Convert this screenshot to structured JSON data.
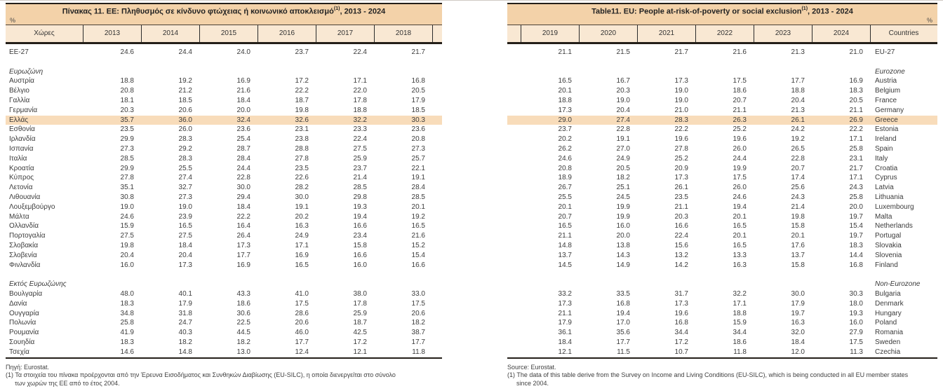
{
  "colors": {
    "band": "#f3d2a9",
    "header_bg": "#f9e8d3",
    "highlight": "#f8dcba",
    "border_dark": "#241f19",
    "text": "#3b3b3b"
  },
  "left_table": {
    "title_main": "Πίνακας 11. ΕΕ: Πληθυσμός σε κίνδυνο φτώχειας ή κοινωνικό αποκλεισμό",
    "title_sup": "(1)",
    "title_tail": ", 2013 - 2024",
    "percent_label": "%",
    "country_header": "Χώρες",
    "years": [
      "2013",
      "2014",
      "2015",
      "2016",
      "2017",
      "2018"
    ],
    "source": "Πηγή: Eurostat.",
    "footnotes": [
      {
        "text": "(1) Τα στοιχεία του πίνακα προέρχονται από την Έρευνα Εισοδήματος και Συνθηκών Διαβίωσης (EU-SILC), η οποία διενεργείται στο σύνολο",
        "cont": false
      },
      {
        "text": "των χωρών της ΕΕ από το έτος 2004.",
        "cont": true
      }
    ]
  },
  "right_table": {
    "title_main": "Table11. EU: People at-risk-of-poverty or social exclusion",
    "title_sup": "(1)",
    "title_tail": ", 2013 - 2024",
    "percent_label": "%",
    "country_header": "Countries",
    "years": [
      "2019",
      "2020",
      "2021",
      "2022",
      "2023",
      "2024"
    ],
    "source": "Source: Eurostat.",
    "footnotes": [
      {
        "text": "(1) The data of this table derive from the Survey on Income and Living Conditions (EU-SILC), which is being conducted in all EU member states",
        "cont": false
      },
      {
        "text": "since 2004.",
        "cont": true
      }
    ]
  },
  "rows": [
    {
      "type": "data",
      "el": "ΕΕ-27",
      "en": "EU-27",
      "l": [
        "24.6",
        "24.4",
        "24.0",
        "23.7",
        "22.4",
        "21.7"
      ],
      "r": [
        "21.1",
        "21.5",
        "21.7",
        "21.6",
        "21.3",
        "21.0"
      ]
    },
    {
      "type": "blank"
    },
    {
      "type": "section",
      "el": "Ευρωζώνη",
      "en": "Eurozone"
    },
    {
      "type": "data",
      "el": "Αυστρία",
      "en": "Austria",
      "l": [
        "18.8",
        "19.2",
        "16.9",
        "17.2",
        "17.1",
        "16.8"
      ],
      "r": [
        "16.5",
        "16.7",
        "17.3",
        "17.5",
        "17.7",
        "16.9"
      ]
    },
    {
      "type": "data",
      "el": "Βέλγιο",
      "en": "Belgium",
      "l": [
        "20.8",
        "21.2",
        "21.6",
        "22.2",
        "22.0",
        "20.5"
      ],
      "r": [
        "20.1",
        "20.3",
        "19.0",
        "18.6",
        "18.8",
        "18.3"
      ]
    },
    {
      "type": "data",
      "el": "Γαλλία",
      "en": "France",
      "l": [
        "18.1",
        "18.5",
        "18.4",
        "18.7",
        "17.8",
        "17.9"
      ],
      "r": [
        "18.8",
        "19.0",
        "19.0",
        "20.7",
        "20.4",
        "20.5"
      ]
    },
    {
      "type": "data",
      "el": "Γερμανία",
      "en": "Germany",
      "l": [
        "20.3",
        "20.6",
        "20.0",
        "19.8",
        "18.8",
        "18.5"
      ],
      "r": [
        "17.3",
        "20.4",
        "21.0",
        "21.1",
        "21.3",
        "21.1"
      ]
    },
    {
      "type": "data",
      "highlight": true,
      "el": "Ελλάς",
      "en": "Greece",
      "l": [
        "35.7",
        "36.0",
        "32.4",
        "32.6",
        "32.2",
        "30.3"
      ],
      "r": [
        "29.0",
        "27.4",
        "28.3",
        "26.3",
        "26.1",
        "26.9"
      ]
    },
    {
      "type": "data",
      "el": "Εσθονία",
      "en": "Estonia",
      "l": [
        "23.5",
        "26.0",
        "23.6",
        "23.1",
        "23.3",
        "23.6"
      ],
      "r": [
        "23.7",
        "22.8",
        "22.2",
        "25.2",
        "24.2",
        "22.2"
      ]
    },
    {
      "type": "data",
      "el": "Ιρλανδία",
      "en": "Ireland",
      "l": [
        "29.9",
        "28.3",
        "25.4",
        "23.8",
        "22.4",
        "20.8"
      ],
      "r": [
        "20.2",
        "19.1",
        "19.6",
        "19.6",
        "19.2",
        "17.1"
      ]
    },
    {
      "type": "data",
      "el": "Ισπανία",
      "en": "Spain",
      "l": [
        "27.3",
        "29.2",
        "28.7",
        "28.8",
        "27.5",
        "27.3"
      ],
      "r": [
        "26.2",
        "27.0",
        "27.8",
        "26.0",
        "26.5",
        "25.8"
      ]
    },
    {
      "type": "data",
      "el": "Ιταλία",
      "en": "Italy",
      "l": [
        "28.5",
        "28.3",
        "28.4",
        "27.8",
        "25.9",
        "25.7"
      ],
      "r": [
        "24.6",
        "24.9",
        "25.2",
        "24.4",
        "22.8",
        "23.1"
      ]
    },
    {
      "type": "data",
      "el": "Κροατία",
      "en": "Croatia",
      "l": [
        "29.9",
        "25.5",
        "24.4",
        "23.5",
        "23.7",
        "22.1"
      ],
      "r": [
        "20.8",
        "20.5",
        "20.9",
        "19.9",
        "20.7",
        "21.7"
      ]
    },
    {
      "type": "data",
      "el": "Κύπρος",
      "en": "Cyprus",
      "l": [
        "27.8",
        "27.4",
        "22.8",
        "22.6",
        "21.4",
        "19.1"
      ],
      "r": [
        "18.9",
        "18.2",
        "17.3",
        "17.5",
        "17.4",
        "17.1"
      ]
    },
    {
      "type": "data",
      "el": "Λετονία",
      "en": "Latvia",
      "l": [
        "35.1",
        "32.7",
        "30.0",
        "28.2",
        "28.5",
        "28.4"
      ],
      "r": [
        "26.7",
        "25.1",
        "26.1",
        "26.0",
        "25.6",
        "24.3"
      ]
    },
    {
      "type": "data",
      "el": "Λιθουανία",
      "en": "Lithuania",
      "l": [
        "30.8",
        "27.3",
        "29.4",
        "30.0",
        "29.8",
        "28.5"
      ],
      "r": [
        "25.5",
        "24.5",
        "23.5",
        "24.6",
        "24.3",
        "25.8"
      ]
    },
    {
      "type": "data",
      "el": "Λουξεμβούργο",
      "en": "Luxembourg",
      "l": [
        "19.0",
        "19.0",
        "18.4",
        "19.1",
        "19.3",
        "20.1"
      ],
      "r": [
        "20.1",
        "19.9",
        "21.1",
        "19.4",
        "21.4",
        "20.0"
      ]
    },
    {
      "type": "data",
      "el": "Μάλτα",
      "en": "Malta",
      "l": [
        "24.6",
        "23.9",
        "22.2",
        "20.2",
        "19.4",
        "19.2"
      ],
      "r": [
        "20.7",
        "19.9",
        "20.3",
        "20.1",
        "19.8",
        "19.7"
      ]
    },
    {
      "type": "data",
      "el": "Ολλανδία",
      "en": "Netherlands",
      "l": [
        "15.9",
        "16.5",
        "16.4",
        "16.3",
        "16.6",
        "16.5"
      ],
      "r": [
        "16.5",
        "16.0",
        "16.6",
        "16.5",
        "15.8",
        "15.4"
      ]
    },
    {
      "type": "data",
      "el": "Πορτογαλία",
      "en": "Portugal",
      "l": [
        "27.5",
        "27.5",
        "26.4",
        "24.9",
        "23.4",
        "21.6"
      ],
      "r": [
        "21.1",
        "20.0",
        "22.4",
        "20.1",
        "20.1",
        "19.7"
      ]
    },
    {
      "type": "data",
      "el": "Σλοβακία",
      "en": "Slovakia",
      "l": [
        "19.8",
        "18.4",
        "17.3",
        "17.1",
        "15.8",
        "15.2"
      ],
      "r": [
        "14.8",
        "13.8",
        "15.6",
        "16.5",
        "17.6",
        "18.3"
      ]
    },
    {
      "type": "data",
      "el": "Σλοβενία",
      "en": "Slovenia",
      "l": [
        "20.4",
        "20.4",
        "17.7",
        "16.9",
        "16.6",
        "15.4"
      ],
      "r": [
        "13.7",
        "14.3",
        "13.2",
        "13.3",
        "13.7",
        "14.4"
      ]
    },
    {
      "type": "data",
      "el": "Φινλανδία",
      "en": "Finland",
      "l": [
        "16.0",
        "17.3",
        "16.9",
        "16.5",
        "16.0",
        "16.6"
      ],
      "r": [
        "14.5",
        "14.9",
        "14.2",
        "16.3",
        "15.8",
        "16.8"
      ]
    },
    {
      "type": "blank"
    },
    {
      "type": "section",
      "el": "Εκτός Ευρωζώνης",
      "en": "Non-Eurozone"
    },
    {
      "type": "data",
      "el": "Βουλγαρία",
      "en": "Bulgaria",
      "l": [
        "48.0",
        "40.1",
        "43.3",
        "41.0",
        "38.0",
        "33.0"
      ],
      "r": [
        "33.2",
        "33.5",
        "31.7",
        "32.2",
        "30.0",
        "30.3"
      ]
    },
    {
      "type": "data",
      "el": "Δανία",
      "en": "Denmark",
      "l": [
        "18.3",
        "17.9",
        "18.6",
        "17.5",
        "17.8",
        "17.5"
      ],
      "r": [
        "17.3",
        "16.8",
        "17.3",
        "17.1",
        "17.9",
        "18.0"
      ]
    },
    {
      "type": "data",
      "el": "Ουγγαρία",
      "en": "Hungary",
      "l": [
        "34.8",
        "31.8",
        "30.6",
        "28.6",
        "25.9",
        "20.6"
      ],
      "r": [
        "21.1",
        "19.4",
        "19.6",
        "18.8",
        "19.7",
        "19.3"
      ]
    },
    {
      "type": "data",
      "el": "Πολωνία",
      "en": "Poland",
      "l": [
        "25.8",
        "24.7",
        "22.5",
        "20.6",
        "18.7",
        "18.2"
      ],
      "r": [
        "17.9",
        "17.0",
        "16.8",
        "15.9",
        "16.3",
        "16.0"
      ]
    },
    {
      "type": "data",
      "el": "Ρουμανία",
      "en": "Romania",
      "l": [
        "41.9",
        "40.3",
        "44.5",
        "46.0",
        "42.5",
        "38.7"
      ],
      "r": [
        "36.1",
        "35.6",
        "34.4",
        "34.4",
        "32.0",
        "27.9"
      ]
    },
    {
      "type": "data",
      "el": "Σουηδία",
      "en": "Sweden",
      "l": [
        "18.3",
        "18.2",
        "18.2",
        "17.7",
        "17.2",
        "17.7"
      ],
      "r": [
        "18.4",
        "17.7",
        "17.2",
        "18.6",
        "18.4",
        "17.5"
      ]
    },
    {
      "type": "data",
      "el": "Τσεχία",
      "en": "Czechia",
      "l": [
        "14.6",
        "14.8",
        "13.0",
        "12.4",
        "12.1",
        "11.8"
      ],
      "r": [
        "12.1",
        "11.5",
        "10.7",
        "11.8",
        "12.0",
        "11.3"
      ]
    }
  ]
}
